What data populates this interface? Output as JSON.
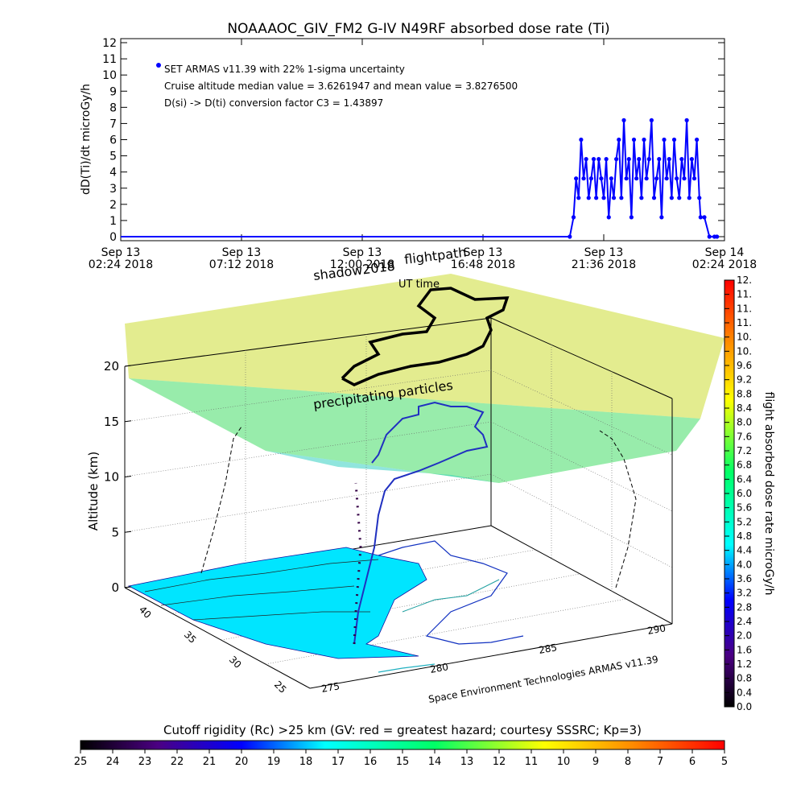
{
  "chart_data": [
    {
      "type": "line",
      "title": "NOAAAOC_GIV_FM2 G-IV    N49RF  absorbed dose rate (Ti)",
      "ylabel": "dD(Ti)/dt microGy/h",
      "ylim": [
        0,
        12
      ],
      "y_ticks": [
        "0",
        "1",
        "2",
        "3",
        "4",
        "5",
        "6",
        "7",
        "8",
        "9",
        "10",
        "11",
        "12"
      ],
      "x_ticks": [
        {
          "line1": "Sep 13",
          "line2": "02:24 2018"
        },
        {
          "line1": "Sep 13",
          "line2": "07:12 2018"
        },
        {
          "line1": "Sep 13",
          "line2": "12:00 2018"
        },
        {
          "line1": "Sep 13",
          "line2": "16:48 2018"
        },
        {
          "line1": "Sep 13",
          "line2": "21:36 2018"
        },
        {
          "line1": "Sep 14",
          "line2": "02:24 2018"
        }
      ],
      "xlim_hours": [
        0,
        24
      ],
      "legend": {
        "entry": "SET ARMAS v11.39 with 22% 1-sigma uncertainty",
        "note1": "Cruise altitude median value = 3.6261947 and mean value = 3.8276500",
        "note2": "D(si) -> D(ti) conversion factor C3 = 1.43897",
        "position": "top-left"
      },
      "series": [
        {
          "color": "#0000ff",
          "x_hours": [
            0,
            1.5,
            3,
            4.5,
            6,
            7.5,
            9,
            10.5,
            12,
            13.5,
            15,
            16.5,
            17.85,
            18.0,
            18.1,
            18.2,
            18.3,
            18.4,
            18.5,
            18.6,
            18.7,
            18.8,
            18.9,
            19.0,
            19.1,
            19.2,
            19.3,
            19.4,
            19.5,
            19.6,
            19.7,
            19.8,
            19.9,
            20.0,
            20.1,
            20.2,
            20.3,
            20.4,
            20.5,
            20.6,
            20.7,
            20.8,
            20.9,
            21.0,
            21.1,
            21.2,
            21.3,
            21.4,
            21.5,
            21.6,
            21.7,
            21.8,
            21.9,
            22.0,
            22.1,
            22.2,
            22.3,
            22.4,
            22.5,
            22.6,
            22.7,
            22.8,
            22.9,
            23.0,
            23.05,
            23.2,
            23.4,
            23.6,
            23.7
          ],
          "y": [
            0,
            0,
            0,
            0,
            0,
            0,
            0,
            0,
            0,
            0,
            0,
            0,
            0,
            1.2,
            3.6,
            2.4,
            6.0,
            3.6,
            4.8,
            2.4,
            3.6,
            4.8,
            2.4,
            4.8,
            3.6,
            2.4,
            4.8,
            1.2,
            3.6,
            2.4,
            4.8,
            6.0,
            2.4,
            7.2,
            3.6,
            4.8,
            1.2,
            6.0,
            3.6,
            4.8,
            2.4,
            6.0,
            3.6,
            4.8,
            7.2,
            2.4,
            3.6,
            4.8,
            1.2,
            6.0,
            3.6,
            4.8,
            2.4,
            6.0,
            3.6,
            2.4,
            4.8,
            3.6,
            7.2,
            2.4,
            4.8,
            3.6,
            6.0,
            2.4,
            1.2,
            1.2,
            0,
            0,
            0
          ]
        }
      ]
    },
    {
      "type": "heatmap",
      "zlabel": "Altitude (km)",
      "z_ticks": [
        "0",
        "5",
        "10",
        "15",
        "20"
      ],
      "lat_ticks": [
        "40",
        "35",
        "30",
        "25"
      ],
      "lon_ticks": [
        "275",
        "280",
        "285",
        "290"
      ],
      "labels": {
        "shadow": "shadow2018",
        "flightpath": "flightpath",
        "ut": "UT time",
        "particles": "precipitating particles",
        "credit": "Space Environment Technologies ARMAS v11.39"
      },
      "colorbar_right": {
        "label": "flight absorbed dose rate microGy/h",
        "ticks": [
          "0.0",
          "0.4",
          "0.8",
          "1.2",
          "1.6",
          "2.0",
          "2.4",
          "2.8",
          "3.2",
          "3.6",
          "4.0",
          "4.4",
          "4.8",
          "5.2",
          "5.6",
          "6.0",
          "6.4",
          "6.8",
          "7.2",
          "7.6",
          "8.0",
          "8.4",
          "8.8",
          "9.2",
          "9.6",
          "10.",
          "10.",
          "11.",
          "11.",
          "11.",
          "12."
        ],
        "range": [
          0,
          12
        ]
      },
      "colorbar_bottom": {
        "label": "Cutoff rigidity (Rc) >25 km (GV: red = greatest hazard; courtesy SSSRC; Kp=3)",
        "ticks": [
          "25",
          "24",
          "23",
          "22",
          "21",
          "20",
          "19",
          "18",
          "17",
          "16",
          "15",
          "14",
          "13",
          "12",
          "11",
          "10",
          "9",
          "8",
          "7",
          "6",
          "5"
        ],
        "range": [
          25,
          5
        ]
      }
    }
  ]
}
